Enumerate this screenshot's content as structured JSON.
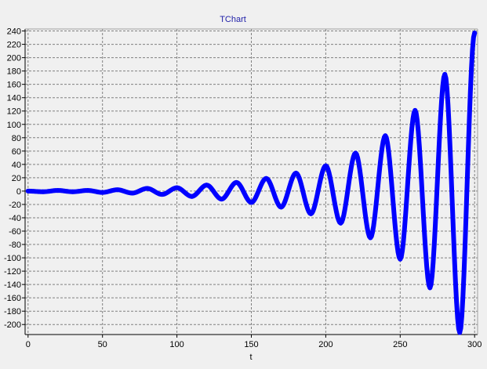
{
  "chart_data": {
    "type": "line",
    "title": "TChart",
    "xlabel": "t",
    "ylabel": "",
    "xlim": [
      -2,
      302
    ],
    "ylim": [
      -215,
      243
    ],
    "xticks": [
      0,
      50,
      100,
      150,
      200,
      250,
      300
    ],
    "yticks": [
      -200,
      -180,
      -160,
      -140,
      -120,
      -100,
      -80,
      -60,
      -40,
      -20,
      0,
      20,
      40,
      60,
      80,
      100,
      120,
      140,
      160,
      180,
      200,
      220,
      240
    ],
    "grid": true,
    "legend": "none",
    "series": [
      {
        "color": "#0000ff",
        "x": [
          0,
          10,
          20,
          30,
          40,
          50,
          60,
          70,
          80,
          90,
          100,
          110,
          120,
          130,
          140,
          150,
          160,
          170,
          180,
          190,
          200,
          210,
          220,
          230,
          240,
          250,
          260,
          270,
          280,
          290,
          300
        ],
        "y": [
          0,
          -1,
          1,
          -1,
          1,
          -2,
          2,
          -3,
          4,
          -5,
          5,
          -8,
          9,
          -12,
          13,
          -17,
          19,
          -24,
          27,
          -34,
          38,
          -48,
          57,
          -70,
          83,
          -102,
          121,
          -145,
          175,
          -212,
          237
        ]
      }
    ]
  }
}
